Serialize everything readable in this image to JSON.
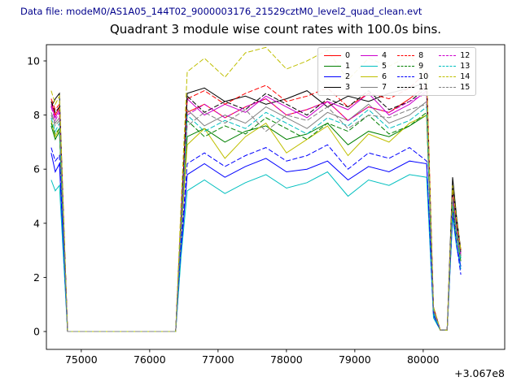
{
  "header": {
    "data_file_label": "Data file: modeM0/AS1A05_144T02_9000003176_21529cztM0_level2_quad_clean.evt"
  },
  "chart_data": {
    "type": "line",
    "title": "Quadrant 3 module wise count rates with 100.0s bins.",
    "xlabel": "",
    "ylabel": "",
    "x_offset_label": "+3.067e8",
    "x_ticks": [
      75000,
      76000,
      77000,
      78000,
      79000,
      80000
    ],
    "y_ticks": [
      0,
      2,
      4,
      6,
      8,
      10
    ],
    "xlim": [
      74490,
      81192
    ],
    "ylim": [
      -0.66,
      10.6
    ],
    "grid": false,
    "legend_position": "upper right",
    "bin_seconds": 100.0,
    "x": [
      74560,
      74620,
      74680,
      74740,
      74800,
      75400,
      76000,
      76380,
      76460,
      76550,
      76800,
      77100,
      77400,
      77700,
      78000,
      78300,
      78600,
      78900,
      79200,
      79500,
      79800,
      80050,
      80150,
      80250,
      80350,
      80430,
      80490,
      80550
    ],
    "series": [
      {
        "label": "0",
        "color": "#ff0000",
        "style": "solid",
        "values": [
          8.5,
          8.0,
          8.3,
          4.0,
          0,
          0,
          0,
          0,
          4.1,
          8.1,
          8.4,
          7.9,
          8.3,
          8.6,
          8.0,
          8.2,
          8.5,
          7.8,
          8.3,
          8.1,
          8.6,
          9.1,
          0.8,
          0.05,
          0.05,
          5.0,
          3.8,
          2.8
        ]
      },
      {
        "label": "1",
        "color": "#008000",
        "style": "solid",
        "values": [
          7.6,
          7.1,
          7.4,
          3.6,
          0,
          0,
          0,
          0,
          3.7,
          7.2,
          7.5,
          7.0,
          7.4,
          7.6,
          7.1,
          7.3,
          7.7,
          6.9,
          7.4,
          7.2,
          7.6,
          8.0,
          0.7,
          0.05,
          0.05,
          4.6,
          3.5,
          2.6
        ]
      },
      {
        "label": "2",
        "color": "#0000ff",
        "style": "solid",
        "values": [
          6.6,
          5.9,
          6.2,
          3.0,
          0,
          0,
          0,
          0,
          3.0,
          5.8,
          6.2,
          5.7,
          6.1,
          6.4,
          5.9,
          6.0,
          6.3,
          5.6,
          6.1,
          5.9,
          6.3,
          6.2,
          0.6,
          0.05,
          0.05,
          4.3,
          3.2,
          2.4
        ]
      },
      {
        "label": "3",
        "color": "#000000",
        "style": "solid",
        "values": [
          8.3,
          8.6,
          8.8,
          4.3,
          0,
          0,
          0,
          0,
          4.3,
          8.8,
          9.0,
          8.5,
          8.7,
          8.4,
          8.6,
          8.9,
          8.3,
          8.7,
          8.5,
          8.8,
          9.0,
          9.2,
          0.9,
          0.05,
          0.05,
          5.7,
          4.2,
          3.0
        ]
      },
      {
        "label": "4",
        "color": "#cc00cc",
        "style": "solid",
        "values": [
          8.4,
          7.9,
          8.2,
          4.1,
          0,
          0,
          0,
          0,
          4.2,
          8.6,
          8.0,
          8.4,
          8.1,
          8.7,
          8.3,
          7.9,
          8.5,
          8.2,
          8.8,
          8.0,
          8.4,
          8.9,
          0.8,
          0.05,
          0.05,
          5.1,
          3.9,
          2.9
        ]
      },
      {
        "label": "5",
        "color": "#00bfbf",
        "style": "solid",
        "values": [
          5.6,
          5.2,
          5.4,
          2.7,
          0,
          0,
          0,
          0,
          2.8,
          5.2,
          5.6,
          5.1,
          5.5,
          5.8,
          5.3,
          5.5,
          5.9,
          5.0,
          5.6,
          5.4,
          5.8,
          5.7,
          0.5,
          0.05,
          0.05,
          4.2,
          3.1,
          2.3
        ]
      },
      {
        "label": "6",
        "color": "#bfbf00",
        "style": "solid",
        "values": [
          7.8,
          7.2,
          7.5,
          3.7,
          0,
          0,
          0,
          0,
          3.6,
          6.9,
          7.5,
          6.4,
          7.2,
          7.7,
          6.6,
          7.1,
          7.6,
          6.5,
          7.3,
          7.0,
          7.7,
          8.0,
          0.7,
          0.05,
          0.05,
          4.7,
          3.6,
          2.7
        ]
      },
      {
        "label": "7",
        "color": "#808080",
        "style": "solid",
        "values": [
          8.1,
          7.7,
          7.9,
          3.9,
          0,
          0,
          0,
          0,
          4.0,
          8.2,
          7.6,
          8.0,
          7.7,
          8.3,
          7.9,
          7.5,
          8.1,
          7.8,
          8.4,
          7.7,
          8.0,
          8.5,
          0.8,
          0.05,
          0.05,
          4.9,
          3.7,
          2.8
        ]
      },
      {
        "label": "8",
        "color": "#ff0000",
        "style": "dashed",
        "values": [
          8.6,
          8.2,
          8.4,
          4.3,
          0,
          0,
          0,
          0,
          4.4,
          8.6,
          8.9,
          8.4,
          8.8,
          9.1,
          8.5,
          8.7,
          9.0,
          8.3,
          8.8,
          8.6,
          9.0,
          9.6,
          0.9,
          0.05,
          0.05,
          5.2,
          4.0,
          3.0
        ]
      },
      {
        "label": "9",
        "color": "#008000",
        "style": "dashed",
        "values": [
          7.7,
          7.3,
          7.5,
          3.7,
          0,
          0,
          0,
          0,
          3.8,
          7.8,
          7.2,
          7.6,
          7.3,
          7.9,
          7.5,
          7.1,
          7.7,
          7.4,
          8.0,
          7.3,
          7.6,
          8.1,
          0.7,
          0.05,
          0.05,
          4.7,
          3.6,
          2.7
        ]
      },
      {
        "label": "10",
        "color": "#0000ff",
        "style": "dashed",
        "values": [
          6.8,
          6.3,
          6.5,
          3.2,
          0,
          0,
          0,
          0,
          3.3,
          6.2,
          6.6,
          6.1,
          6.5,
          6.8,
          6.3,
          6.5,
          6.9,
          6.0,
          6.6,
          6.4,
          6.8,
          6.3,
          0.6,
          0.05,
          0.05,
          4.4,
          3.2,
          2.1
        ]
      },
      {
        "label": "11",
        "color": "#000000",
        "style": "dashed",
        "values": [
          8.5,
          8.1,
          8.3,
          4.2,
          0,
          0,
          0,
          0,
          4.2,
          8.7,
          8.1,
          8.5,
          8.2,
          8.8,
          8.4,
          8.0,
          8.6,
          8.3,
          8.9,
          8.2,
          8.5,
          9.0,
          0.8,
          0.05,
          0.05,
          5.3,
          4.0,
          2.9
        ]
      },
      {
        "label": "12",
        "color": "#cc00cc",
        "style": "dashed",
        "values": [
          8.3,
          7.8,
          8.1,
          4.1,
          0,
          0,
          0,
          0,
          4.1,
          8.0,
          8.4,
          7.9,
          8.3,
          8.6,
          8.0,
          8.2,
          8.5,
          7.8,
          8.3,
          8.1,
          8.5,
          8.8,
          0.8,
          0.05,
          0.05,
          5.0,
          3.8,
          2.8
        ]
      },
      {
        "label": "13",
        "color": "#00bfbf",
        "style": "dashed",
        "values": [
          7.9,
          7.4,
          7.7,
          3.8,
          0,
          0,
          0,
          0,
          3.9,
          8.0,
          7.4,
          7.8,
          7.5,
          8.1,
          7.7,
          7.3,
          7.9,
          7.6,
          8.2,
          7.5,
          7.8,
          8.3,
          0.7,
          0.05,
          0.05,
          4.8,
          3.6,
          2.7
        ]
      },
      {
        "label": "14",
        "color": "#bfbf00",
        "style": "dashed",
        "values": [
          8.9,
          8.4,
          8.7,
          4.4,
          0,
          0,
          0,
          0,
          4.8,
          9.6,
          10.1,
          9.4,
          10.3,
          10.5,
          9.7,
          10.0,
          10.4,
          9.3,
          10.1,
          9.8,
          10.2,
          9.5,
          0.9,
          0.05,
          0.05,
          5.4,
          4.1,
          3.0
        ]
      },
      {
        "label": "15",
        "color": "#808080",
        "style": "dashed",
        "values": [
          8.0,
          7.6,
          7.8,
          3.9,
          0,
          0,
          0,
          0,
          3.9,
          7.6,
          8.1,
          7.7,
          8.2,
          7.4,
          8.0,
          7.8,
          8.3,
          7.5,
          8.0,
          7.9,
          8.2,
          8.4,
          0.8,
          0.05,
          0.05,
          4.9,
          3.7,
          2.8
        ]
      }
    ]
  }
}
